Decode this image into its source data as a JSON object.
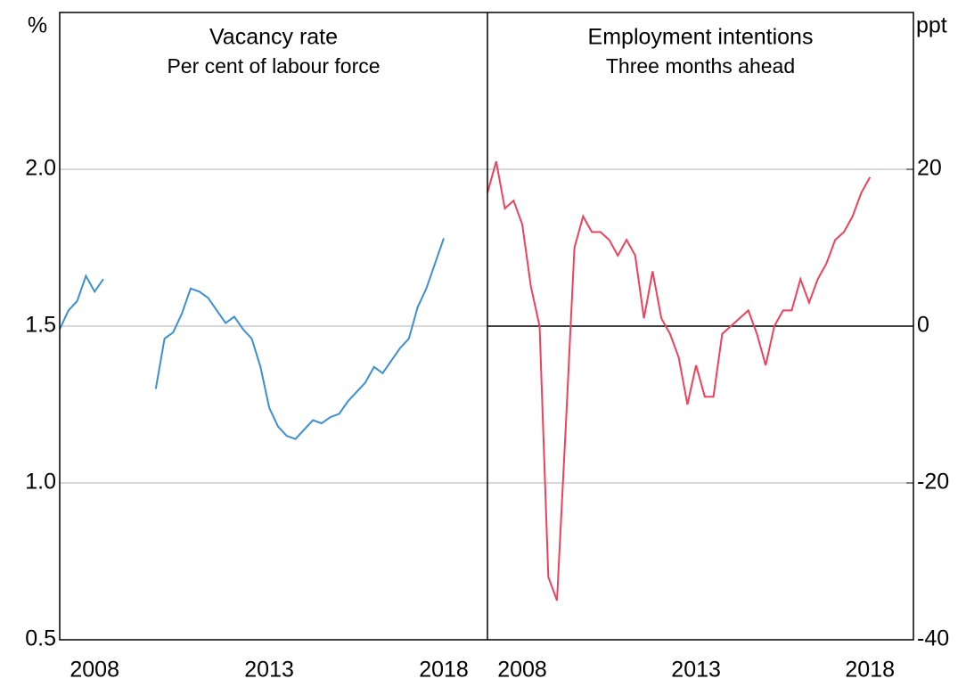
{
  "chart_data": [
    {
      "type": "line",
      "title": "Vacancy rate",
      "subtitle": "Per cent of labour force",
      "y_label": "%",
      "x": [
        2007.5,
        2007.75,
        2008,
        2008.25,
        2008.5,
        2008.75,
        2009,
        2009.25,
        2009.5,
        2009.75,
        2010,
        2010.25,
        2010.5,
        2010.75,
        2011,
        2011.25,
        2011.5,
        2011.75,
        2012,
        2012.25,
        2012.5,
        2012.75,
        2013,
        2013.25,
        2013.5,
        2013.75,
        2014,
        2014.25,
        2014.5,
        2014.75,
        2015,
        2015.25,
        2015.5,
        2015.75,
        2016,
        2016.25,
        2016.5,
        2016.75,
        2017,
        2017.25,
        2017.5,
        2017.75,
        2018,
        2018.25,
        2018.5
      ],
      "series": [
        {
          "name": "Vacancy rate",
          "color": "#3b8fd4",
          "values": [
            1.49,
            1.55,
            1.58,
            1.66,
            1.61,
            1.65,
            null,
            null,
            null,
            null,
            null,
            1.3,
            1.46,
            1.48,
            1.54,
            1.62,
            1.61,
            1.59,
            1.55,
            1.51,
            1.53,
            1.49,
            1.46,
            1.37,
            1.24,
            1.18,
            1.15,
            1.14,
            1.17,
            1.2,
            1.19,
            1.21,
            1.22,
            1.26,
            1.29,
            1.32,
            1.37,
            1.35,
            1.39,
            1.43,
            1.46,
            1.56,
            1.62,
            1.7,
            1.78
          ]
        }
      ],
      "xlim": [
        2007.5,
        2019.75
      ],
      "xticks": [
        {
          "value": 2008.5,
          "label": "2008"
        },
        {
          "value": 2013.5,
          "label": "2013"
        },
        {
          "value": 2018.5,
          "label": "2018"
        }
      ],
      "ylim": [
        0.5,
        2.5
      ],
      "yticks": [
        0.5,
        {
          "value": 1,
          "label": "1.0"
        },
        1.5,
        {
          "value": 2,
          "label": "2.0"
        }
      ],
      "grid": true,
      "zero_line": false
    },
    {
      "type": "line",
      "title": "Employment intentions",
      "subtitle": "Three months ahead",
      "y_label": "ppt",
      "x": [
        2007.5,
        2007.75,
        2008,
        2008.25,
        2008.5,
        2008.75,
        2009,
        2009.25,
        2009.5,
        2009.75,
        2010,
        2010.25,
        2010.5,
        2010.75,
        2011,
        2011.25,
        2011.5,
        2011.75,
        2012,
        2012.25,
        2012.5,
        2012.75,
        2013,
        2013.25,
        2013.5,
        2013.75,
        2014,
        2014.25,
        2014.5,
        2014.75,
        2015,
        2015.25,
        2015.5,
        2015.75,
        2016,
        2016.25,
        2016.5,
        2016.75,
        2017,
        2017.25,
        2017.5,
        2017.75,
        2018,
        2018.25,
        2018.5
      ],
      "series": [
        {
          "name": "Employment intentions",
          "color": "#f0405a",
          "values": [
            17,
            21,
            15,
            16,
            13,
            5,
            0,
            -32,
            -35,
            -13,
            10,
            14,
            12,
            12,
            11,
            9,
            11,
            9,
            1,
            7,
            1,
            -1,
            -4,
            -10,
            -5,
            -9,
            -9,
            -1,
            0,
            1,
            2,
            -1,
            -5,
            0,
            2,
            2,
            6,
            3,
            6,
            8,
            11,
            12,
            14,
            17,
            19
          ]
        }
      ],
      "xlim": [
        2007.5,
        2019.75
      ],
      "xticks": [
        {
          "value": 2008.5,
          "label": "2008"
        },
        {
          "value": 2013.5,
          "label": "2013"
        },
        {
          "value": 2018.5,
          "label": "2018"
        }
      ],
      "ylim": [
        -40,
        40
      ],
      "yticks": [
        -40,
        -20,
        0,
        20
      ],
      "grid": false,
      "zero_line": true
    }
  ]
}
